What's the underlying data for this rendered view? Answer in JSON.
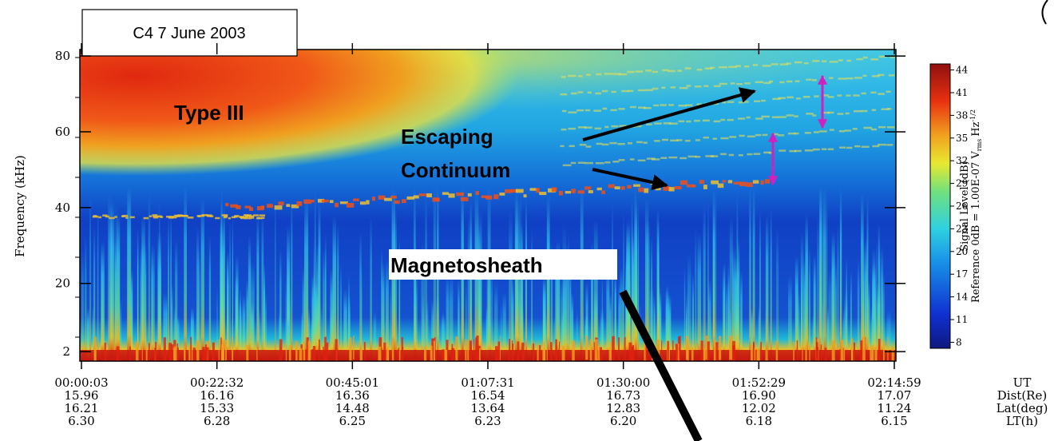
{
  "chart_data": {
    "type": "spectrogram",
    "title": "C4  7 June 2003",
    "y_label": "Frequency (kHz)",
    "ylim": [
      -0.5,
      81.7
    ],
    "yticks": [
      2,
      20,
      40,
      60,
      80
    ],
    "x_rows": [
      {
        "name": "UT",
        "labels": [
          "00:00:03",
          "00:22:32",
          "00:45:01",
          "01:07:31",
          "01:30:00",
          "01:52:29",
          "02:14:59"
        ]
      },
      {
        "name": "Dist(Re)",
        "labels": [
          "15.96",
          "16.16",
          "16.36",
          "16.54",
          "16.73",
          "16.90",
          "17.07"
        ]
      },
      {
        "name": "Lat(deg)",
        "labels": [
          "16.21",
          "15.33",
          "14.48",
          "13.64",
          "12.83",
          "12.02",
          "11.24"
        ]
      },
      {
        "name": "LT(h)",
        "labels": [
          "6.30",
          "6.28",
          "6.25",
          "6.23",
          "6.20",
          "6.18",
          "6.15"
        ]
      }
    ],
    "colorbar": {
      "label": "Signal Level (dB)",
      "reference": "Reference 0dB = 1.00E-07 V",
      "reference_sub": "rms",
      "reference_tail": "Hz",
      "reference_exp": "-1/2",
      "lim": [
        7.2,
        44.8
      ],
      "ticks": [
        8,
        11,
        14,
        17,
        20,
        23,
        26,
        29,
        32,
        35,
        38,
        41,
        44
      ]
    },
    "annotations": [
      "Type III",
      "Escaping",
      "Continuum",
      "Magnetosheath"
    ]
  }
}
